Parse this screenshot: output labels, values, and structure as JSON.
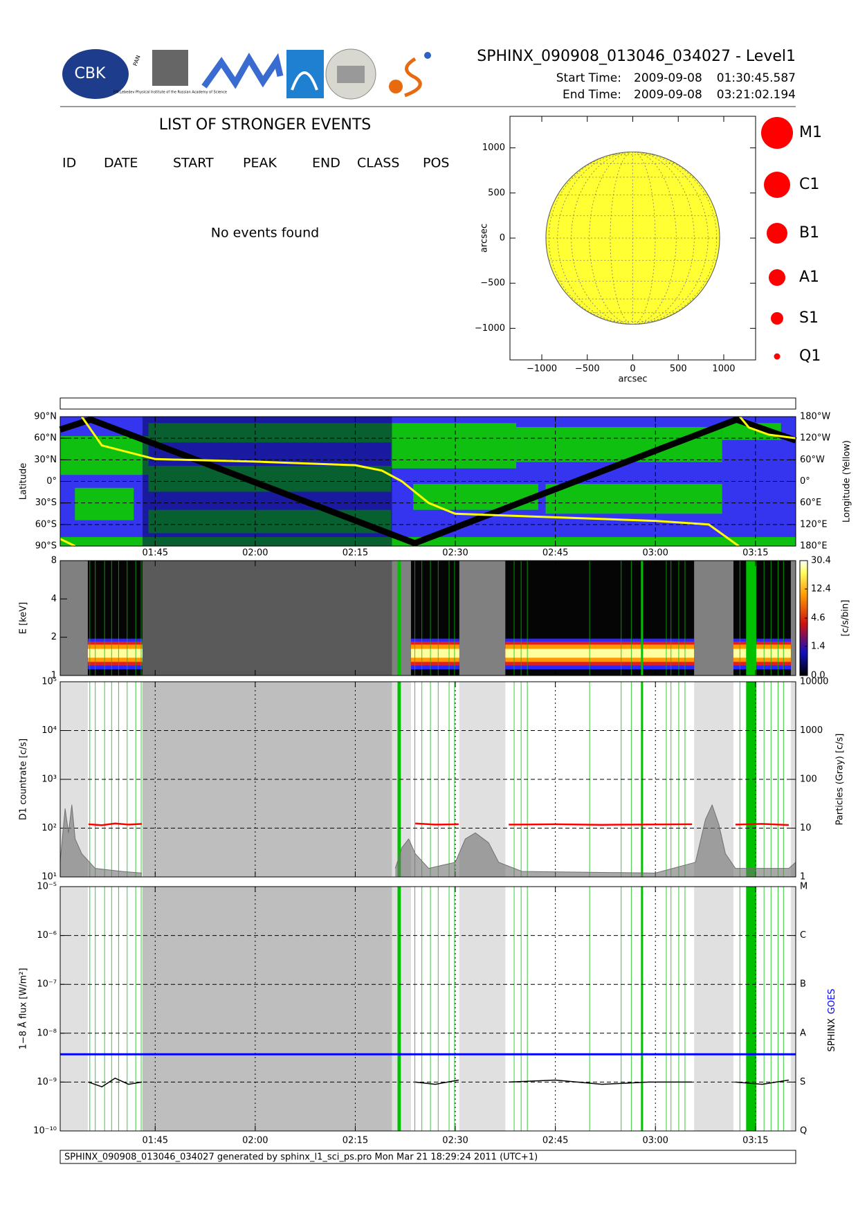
{
  "header": {
    "title": "SPHINX_090908_013046_034027 - Level1",
    "start_label": "Start Time:",
    "start_date": "2009-09-08",
    "start_time": "01:30:45.587",
    "end_label": "End Time:",
    "end_date": "2009-09-08",
    "end_time": "03:21:02.194",
    "logo_cbk": "CBK",
    "logo_pan": "PAN",
    "logo_lebedev": "P.N.Lebedev Physical Institute of the Russian Academy of Science"
  },
  "events": {
    "title": "LIST OF STRONGER EVENTS",
    "columns": [
      "ID",
      "DATE",
      "START",
      "PEAK",
      "END",
      "CLASS",
      "POS"
    ],
    "message": "No events found"
  },
  "sun_map": {
    "xlabel": "arcsec",
    "ylabel": "arcsec",
    "xlim": [
      -1350,
      1350
    ],
    "ylim": [
      -1350,
      1350
    ],
    "xticks": [
      {
        "value": -1000,
        "label": "−1000"
      },
      {
        "value": -500,
        "label": "−500"
      },
      0,
      500,
      1000
    ],
    "yticks": [
      {
        "value": -1000,
        "label": "−1000"
      },
      {
        "value": -500,
        "label": "−500"
      },
      0,
      500,
      1000
    ],
    "sun_radius": 955,
    "sun_color": "#ffff33"
  },
  "class_legend": {
    "labels": [
      "M1",
      "C1",
      "B1",
      "A1",
      "S1",
      "Q1"
    ],
    "color": "#ff0000"
  },
  "observation": {
    "segments": [
      [
        "01:34:54",
        "01:43:06"
      ],
      [
        "02:23:21",
        "02:30:36"
      ],
      [
        "02:37:30",
        "03:05:48"
      ],
      [
        "03:11:42",
        "03:20:18"
      ]
    ],
    "saa": [
      "01:43:06",
      "02:20:30"
    ],
    "flags": [
      "01:35:12",
      "01:36:01",
      "01:37:25",
      "01:38:28",
      "01:39:31",
      "01:40:48",
      "01:42:05",
      "01:42:54",
      "02:23:56",
      "02:24:59",
      "02:26:16",
      "02:27:26",
      "02:29:04",
      "02:29:53",
      "02:38:49",
      "02:39:52",
      "02:40:48",
      "02:50:08",
      "02:54:52",
      "02:56:23",
      "03:01:38",
      "03:02:20",
      "03:03:30",
      "03:04:26",
      "03:12:40",
      "03:16:17",
      "03:17:20",
      "03:18:23",
      "03:19:12"
    ],
    "flag_bands": [
      [
        "02:21:20",
        "02:21:50"
      ],
      [
        "02:57:50",
        "02:58:05"
      ],
      [
        "03:13:36",
        "03:15:07"
      ]
    ],
    "flag_color": "#00c000"
  },
  "chart_data": [
    {
      "type": "map-track",
      "ylabel": "Latitude",
      "y2label": "Longitude (Yellow)",
      "xlim": [
        "01:30:45.587",
        "03:21:02.194"
      ],
      "xticks": [
        "01:45",
        "02:00",
        "02:15",
        "02:30",
        "02:45",
        "03:00",
        "03:15"
      ],
      "ylim": [
        -90,
        90
      ],
      "yticks": [
        {
          "value": -90,
          "label": "90°S"
        },
        {
          "value": -60,
          "label": "60°S"
        },
        {
          "value": -30,
          "label": "30°S"
        },
        {
          "value": 0,
          "label": "0°"
        },
        {
          "value": 30,
          "label": "30°N"
        },
        {
          "value": 60,
          "label": "60°N"
        },
        {
          "value": 90,
          "label": "90°N"
        }
      ],
      "y2lim": [
        180,
        -180
      ],
      "y2ticks": [
        {
          "value": -180,
          "label": "180°W"
        },
        {
          "value": -120,
          "label": "120°W"
        },
        {
          "value": -60,
          "label": "60°W"
        },
        {
          "value": 0,
          "label": "0°"
        },
        {
          "value": 60,
          "label": "60°E"
        },
        {
          "value": 120,
          "label": "120°E"
        },
        {
          "value": 180,
          "label": "180°E"
        }
      ],
      "series": [
        {
          "color": "#000000",
          "x": [
            "01:30:45",
            "01:35:20",
            "02:23:55",
            "03:12:10",
            "03:21:02"
          ],
          "values": [
            72,
            86,
            -86,
            86,
            57
          ]
        },
        {
          "color": "#ffff00",
          "axis": "y2",
          "x": [
            "01:30:45",
            "01:33:00",
            "01:33:01",
            "01:34:00",
            "01:37:00",
            "01:45:00",
            "02:00:00",
            "02:15:00",
            "02:19:00",
            "02:22:00",
            "02:26:00",
            "02:30:00",
            "02:45:00",
            "03:00:00",
            "03:08:00",
            "03:11:00",
            "03:12:30",
            "03:12:31",
            "03:12:40",
            "03:14:00",
            "03:17:00",
            "03:21:02"
          ],
          "values": [
            160,
            180,
            null,
            -180,
            -100,
            -62,
            -55,
            -45,
            -30,
            0,
            60,
            90,
            100,
            110,
            120,
            160,
            180,
            null,
            -180,
            -150,
            -130,
            -120
          ]
        }
      ]
    },
    {
      "type": "spectrogram",
      "ylabel": "E [keV]",
      "xlim": [
        "01:30:45.587",
        "03:21:02.194"
      ],
      "xticks": [
        "01:45",
        "02:00",
        "02:15",
        "02:30",
        "02:45",
        "03:00",
        "03:15"
      ],
      "ylim": [
        1,
        8
      ],
      "yticks": [
        1,
        2,
        4,
        8
      ],
      "log_y": true,
      "colorbar": {
        "label": "[c/s/bin]",
        "lim": [
          0,
          30.4
        ],
        "scale": "log1p",
        "ticks": [
          {
            "value": 0,
            "label": "0.0"
          },
          1.4,
          4.6,
          12.4,
          30.4
        ]
      },
      "intensity_layers": [
        {
          "low": 1.12,
          "high": 1.95,
          "color": "#2828ff"
        },
        {
          "low": 1.2,
          "high": 1.85,
          "color": "#e02020"
        },
        {
          "low": 1.28,
          "high": 1.75,
          "color": "#ff9900"
        },
        {
          "low": 1.38,
          "high": 1.62,
          "color": "#ffffa0"
        }
      ]
    },
    {
      "type": "countrate",
      "ylabel": "D1 countrate [c/s]",
      "y2label": "Particles (Gray) [c/s]",
      "xlim": [
        "01:30:45.587",
        "03:21:02.194"
      ],
      "xticks": [
        "01:45",
        "02:00",
        "02:15",
        "02:30",
        "02:45",
        "03:00",
        "03:15"
      ],
      "ylim": [
        10,
        100000
      ],
      "log_y": true,
      "yticks": [
        {
          "value": 10,
          "label": "10¹"
        },
        {
          "value": 100,
          "label": "10²"
        },
        {
          "value": 1000,
          "label": "10³"
        },
        {
          "value": 10000,
          "label": "10⁴"
        },
        {
          "value": 100000,
          "label": "10⁵"
        }
      ],
      "y2lim": [
        1,
        10000
      ],
      "y2ticks": [
        1,
        10,
        100,
        1000,
        10000
      ],
      "series": [
        {
          "color": "#ff0000",
          "x": [
            "01:35:00",
            "01:37:00",
            "01:39:00",
            "01:41:00",
            "01:43:00",
            "01:44:00",
            "02:24:00",
            "02:27:00",
            "02:30:30",
            "02:34:00",
            "02:38:00",
            "02:45:00",
            "02:52:00",
            "02:59:00",
            "03:05:30",
            "03:09:00",
            "03:12:00",
            "03:16:00",
            "03:20:00"
          ],
          "values": [
            120,
            115,
            125,
            118,
            122,
            null,
            125,
            118,
            120,
            null,
            118,
            120,
            117,
            119,
            120,
            null,
            118,
            122,
            116
          ]
        },
        {
          "color": "#707070",
          "axis": "y2",
          "x": [
            "01:30:45",
            "01:31:30",
            "01:32:00",
            "01:32:30",
            "01:33:00",
            "01:34:00",
            "01:36:00",
            "01:40:00",
            "01:43:00",
            "01:44:00",
            "02:21:00",
            "02:22:00",
            "02:23:00",
            "02:24:00",
            "02:26:00",
            "02:30:00",
            "02:31:30",
            "02:33:00",
            "02:35:00",
            "02:36:30",
            "02:40:00",
            "03:00:00",
            "03:06:00",
            "03:07:30",
            "03:08:30",
            "03:09:30",
            "03:10:30",
            "03:12:00",
            "03:20:00",
            "03:21:02"
          ],
          "values": [
            2,
            25,
            8,
            30,
            6,
            3,
            1.5,
            1.3,
            1.2,
            null,
            1.5,
            4,
            6,
            3,
            1.5,
            2,
            6,
            8,
            5,
            2,
            1.3,
            1.2,
            2,
            15,
            30,
            12,
            3,
            1.5,
            1.5,
            2
          ]
        }
      ]
    },
    {
      "type": "flux",
      "ylabel": "1−8 Å flux [W/m²]",
      "xlim": [
        "01:30:45.587",
        "03:21:02.194"
      ],
      "xticks": [
        "01:45",
        "02:00",
        "02:15",
        "02:30",
        "02:45",
        "03:00",
        "03:15"
      ],
      "ylim": [
        1e-10,
        1e-05
      ],
      "log_y": true,
      "yticks": [
        {
          "value": 1e-10,
          "label": "10⁻¹⁰"
        },
        {
          "value": 1e-09,
          "label": "10⁻⁹"
        },
        {
          "value": 1e-08,
          "label": "10⁻⁸"
        },
        {
          "value": 1e-07,
          "label": "10⁻⁷"
        },
        {
          "value": 1e-06,
          "label": "10⁻⁶"
        },
        {
          "value": 1e-05,
          "label": "10⁻⁵"
        }
      ],
      "y2ticks": [
        {
          "value": 1e-10,
          "label": "Q"
        },
        {
          "value": 1e-09,
          "label": "S"
        },
        {
          "value": 1e-08,
          "label": "A"
        },
        {
          "value": 1e-07,
          "label": "B"
        },
        {
          "value": 1e-06,
          "label": "C"
        },
        {
          "value": 1e-05,
          "label": "M"
        }
      ],
      "series": [
        {
          "name": "SPHINX",
          "color": "#000000",
          "x": [
            "01:35:00",
            "01:37:00",
            "01:39:00",
            "01:41:00",
            "01:43:00",
            "01:44:00",
            "02:24:00",
            "02:27:00",
            "02:30:30",
            "02:34:00",
            "02:38:00",
            "02:45:00",
            "02:52:00",
            "02:59:00",
            "03:05:30",
            "03:09:00",
            "03:12:00",
            "03:16:00",
            "03:20:00"
          ],
          "values": [
            1e-09,
            8e-10,
            1.2e-09,
            9e-10,
            1e-09,
            null,
            1e-09,
            9e-10,
            1.1e-09,
            null,
            1e-09,
            1.1e-09,
            9e-10,
            1e-09,
            1e-09,
            null,
            1e-09,
            9e-10,
            1.1e-09
          ]
        },
        {
          "name": "GOES",
          "color": "#0000ff",
          "x": [
            "01:30:45.587",
            "03:21:02.194"
          ],
          "values": [
            3.7e-09,
            3.7e-09
          ]
        }
      ]
    }
  ],
  "footer": "SPHINX_090908_013046_034027 generated by sphinx_l1_sci_ps.pro Mon Mar 21 18:29:24 2011 (UTC+1)"
}
